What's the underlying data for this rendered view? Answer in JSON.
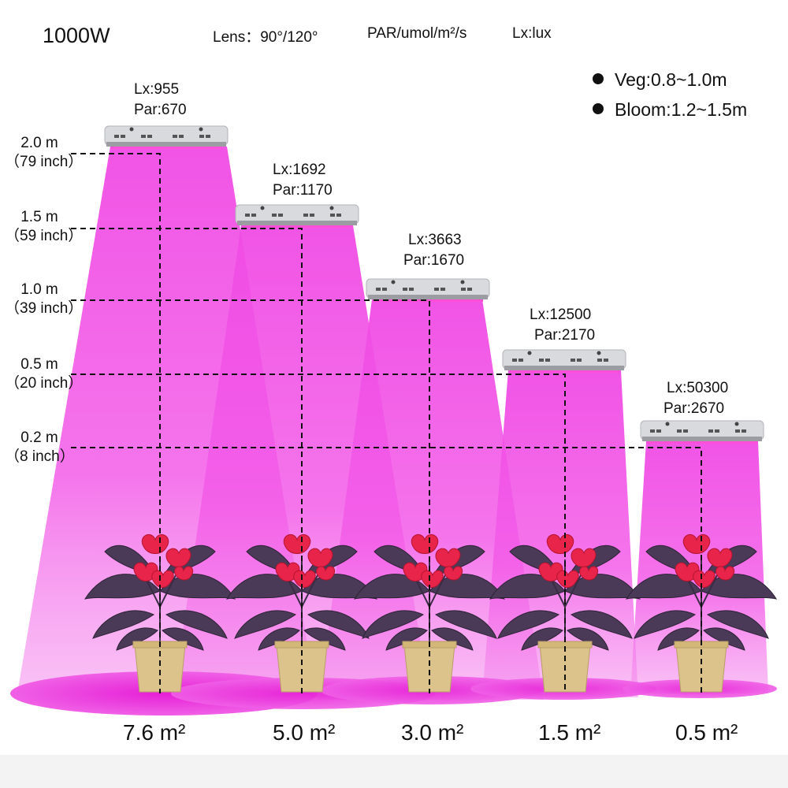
{
  "header": {
    "power": "1000W",
    "lens_label": "Lens：90°/120°",
    "par_unit": "PAR/umol/m²/s",
    "lux_unit": "Lx:lux"
  },
  "legend": {
    "veg": "Veg:0.8~1.0m",
    "bloom": "Bloom:1.2~1.5m"
  },
  "heights": [
    {
      "m": "2.0 m",
      "inch": "（79 inch）"
    },
    {
      "m": "1.5 m",
      "inch": "（59 inch）"
    },
    {
      "m": "1.0 m",
      "inch": "（39 inch）"
    },
    {
      "m": "0.5 m",
      "inch": "（20 inch）"
    },
    {
      "m": "0.2 m",
      "inch": "（8 inch）"
    }
  ],
  "readings": [
    {
      "lx": "Lx:955",
      "par": "Par:670"
    },
    {
      "lx": "Lx:1692",
      "par": "Par:1170"
    },
    {
      "lx": "Lx:3663",
      "par": "Par:1670"
    },
    {
      "lx": "Lx:12500",
      "par": "Par:2170"
    },
    {
      "lx": "Lx:50300",
      "par": "Par:2670"
    }
  ],
  "areas": [
    "7.6 m²",
    "5.0 m²",
    "3.0 m²",
    "1.5 m²",
    "0.5 m²"
  ],
  "colors": {
    "beam": "#f24ee6",
    "floor": "#ee2fe0",
    "lamp": "#d9dade",
    "flower": "#e8244a",
    "leaf": "#4a3a58",
    "pot": "#dcc38c"
  }
}
